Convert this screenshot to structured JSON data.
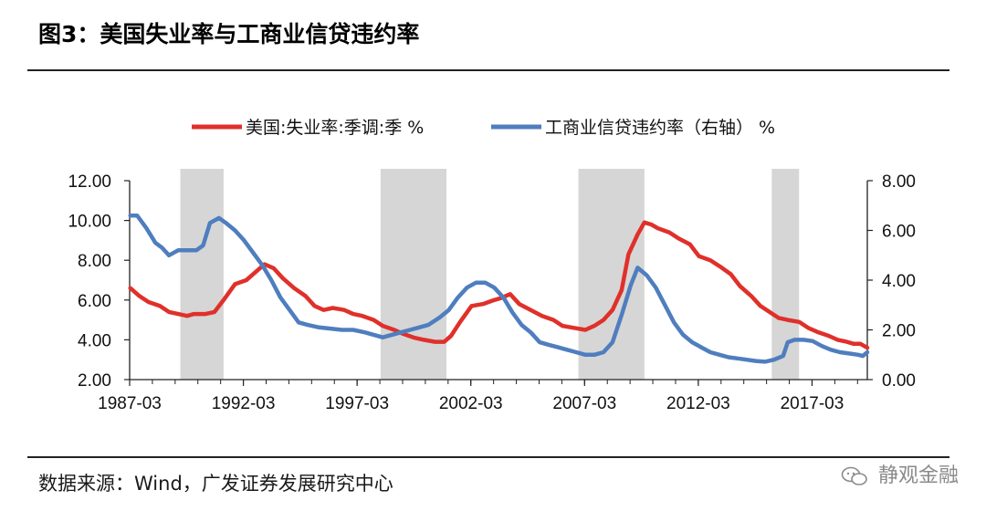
{
  "title": "图3：美国失业率与工商业信贷违约率",
  "source": "数据来源：Wind，广发证券发展研究中心",
  "watermark": "静观金融",
  "chart_data": {
    "type": "line",
    "title": "图3：美国失业率与工商业信贷违约率",
    "legend_position": "top",
    "x_axis": {
      "start": 1987.17,
      "end": 2019.6,
      "tick_labels": [
        "1987-03",
        "1992-03",
        "1997-03",
        "2002-03",
        "2007-03",
        "2012-03",
        "2017-03"
      ],
      "tick_values": [
        1987.17,
        1992.17,
        1997.17,
        2002.17,
        2007.17,
        2012.17,
        2017.17
      ]
    },
    "y_left": {
      "min": 2,
      "max": 12,
      "ticks": [
        "2.00",
        "4.00",
        "6.00",
        "8.00",
        "10.00",
        "12.00"
      ]
    },
    "y_right": {
      "min": 0,
      "max": 8,
      "ticks": [
        "0.00",
        "2.00",
        "4.00",
        "6.00",
        "8.00"
      ]
    },
    "recessions": [
      [
        1989.4,
        1991.3
      ],
      [
        1998.2,
        2001.1
      ],
      [
        2006.9,
        2009.8
      ],
      [
        2015.4,
        2016.6
      ]
    ],
    "series": [
      {
        "name": "美国:失业率:季调:季 %",
        "axis": "left",
        "color": "#e0302a",
        "points": [
          [
            1987.2,
            6.6
          ],
          [
            1987.6,
            6.2
          ],
          [
            1988.0,
            5.9
          ],
          [
            1988.5,
            5.7
          ],
          [
            1988.9,
            5.4
          ],
          [
            1989.3,
            5.3
          ],
          [
            1989.7,
            5.2
          ],
          [
            1990.0,
            5.3
          ],
          [
            1990.5,
            5.3
          ],
          [
            1990.9,
            5.4
          ],
          [
            1991.3,
            6.0
          ],
          [
            1991.8,
            6.8
          ],
          [
            1992.3,
            7.0
          ],
          [
            1992.8,
            7.5
          ],
          [
            1993.1,
            7.8
          ],
          [
            1993.5,
            7.6
          ],
          [
            1993.9,
            7.1
          ],
          [
            1994.4,
            6.6
          ],
          [
            1994.9,
            6.2
          ],
          [
            1995.3,
            5.7
          ],
          [
            1995.7,
            5.5
          ],
          [
            1996.1,
            5.6
          ],
          [
            1996.6,
            5.5
          ],
          [
            1997.0,
            5.3
          ],
          [
            1997.4,
            5.2
          ],
          [
            1997.9,
            5.0
          ],
          [
            1998.3,
            4.7
          ],
          [
            1998.8,
            4.5
          ],
          [
            1999.2,
            4.3
          ],
          [
            1999.7,
            4.1
          ],
          [
            2000.1,
            4.0
          ],
          [
            2000.6,
            3.9
          ],
          [
            2001.0,
            3.9
          ],
          [
            2001.3,
            4.2
          ],
          [
            2001.7,
            4.9
          ],
          [
            2002.2,
            5.7
          ],
          [
            2002.7,
            5.8
          ],
          [
            2003.2,
            6.0
          ],
          [
            2003.5,
            6.1
          ],
          [
            2003.9,
            6.3
          ],
          [
            2004.3,
            5.8
          ],
          [
            2004.8,
            5.5
          ],
          [
            2005.3,
            5.2
          ],
          [
            2005.8,
            5.0
          ],
          [
            2006.2,
            4.7
          ],
          [
            2006.7,
            4.6
          ],
          [
            2007.2,
            4.5
          ],
          [
            2007.6,
            4.7
          ],
          [
            2008.0,
            5.0
          ],
          [
            2008.4,
            5.5
          ],
          [
            2008.8,
            6.5
          ],
          [
            2009.1,
            8.3
          ],
          [
            2009.5,
            9.3
          ],
          [
            2009.8,
            9.9
          ],
          [
            2010.1,
            9.8
          ],
          [
            2010.4,
            9.6
          ],
          [
            2010.9,
            9.4
          ],
          [
            2011.3,
            9.1
          ],
          [
            2011.8,
            8.8
          ],
          [
            2012.2,
            8.2
          ],
          [
            2012.7,
            8.0
          ],
          [
            2013.1,
            7.7
          ],
          [
            2013.6,
            7.3
          ],
          [
            2014.0,
            6.7
          ],
          [
            2014.5,
            6.2
          ],
          [
            2014.9,
            5.7
          ],
          [
            2015.3,
            5.4
          ],
          [
            2015.7,
            5.1
          ],
          [
            2016.1,
            5.0
          ],
          [
            2016.6,
            4.9
          ],
          [
            2017.0,
            4.6
          ],
          [
            2017.4,
            4.4
          ],
          [
            2017.9,
            4.2
          ],
          [
            2018.3,
            4.0
          ],
          [
            2018.7,
            3.9
          ],
          [
            2019.0,
            3.8
          ],
          [
            2019.3,
            3.8
          ],
          [
            2019.6,
            3.6
          ]
        ]
      },
      {
        "name": "工商业信贷违约率（右轴） %",
        "axis": "right",
        "color": "#4f7ebf",
        "points": [
          [
            1987.2,
            6.6
          ],
          [
            1987.5,
            6.6
          ],
          [
            1987.9,
            6.1
          ],
          [
            1988.3,
            5.5
          ],
          [
            1988.6,
            5.3
          ],
          [
            1988.9,
            5.0
          ],
          [
            1989.3,
            5.2
          ],
          [
            1989.7,
            5.2
          ],
          [
            1990.1,
            5.2
          ],
          [
            1990.4,
            5.4
          ],
          [
            1990.7,
            6.3
          ],
          [
            1991.1,
            6.5
          ],
          [
            1991.4,
            6.3
          ],
          [
            1991.8,
            6.0
          ],
          [
            1992.2,
            5.6
          ],
          [
            1992.6,
            5.1
          ],
          [
            1993.0,
            4.6
          ],
          [
            1993.4,
            4.0
          ],
          [
            1993.8,
            3.3
          ],
          [
            1994.2,
            2.8
          ],
          [
            1994.6,
            2.3
          ],
          [
            1995.0,
            2.2
          ],
          [
            1995.5,
            2.1
          ],
          [
            1996.0,
            2.05
          ],
          [
            1996.5,
            2.0
          ],
          [
            1997.0,
            2.0
          ],
          [
            1997.5,
            1.9
          ],
          [
            1997.9,
            1.8
          ],
          [
            1998.3,
            1.7
          ],
          [
            1998.7,
            1.8
          ],
          [
            1999.1,
            1.9
          ],
          [
            1999.5,
            2.0
          ],
          [
            1999.9,
            2.1
          ],
          [
            2000.3,
            2.2
          ],
          [
            2000.8,
            2.5
          ],
          [
            2001.2,
            2.8
          ],
          [
            2001.6,
            3.3
          ],
          [
            2002.0,
            3.7
          ],
          [
            2002.4,
            3.9
          ],
          [
            2002.8,
            3.9
          ],
          [
            2003.2,
            3.7
          ],
          [
            2003.6,
            3.3
          ],
          [
            2004.0,
            2.7
          ],
          [
            2004.4,
            2.2
          ],
          [
            2004.8,
            1.9
          ],
          [
            2005.2,
            1.5
          ],
          [
            2005.6,
            1.4
          ],
          [
            2006.0,
            1.3
          ],
          [
            2006.4,
            1.2
          ],
          [
            2006.8,
            1.1
          ],
          [
            2007.2,
            1.0
          ],
          [
            2007.6,
            1.0
          ],
          [
            2008.0,
            1.1
          ],
          [
            2008.4,
            1.5
          ],
          [
            2008.8,
            2.6
          ],
          [
            2009.2,
            3.8
          ],
          [
            2009.5,
            4.5
          ],
          [
            2009.9,
            4.2
          ],
          [
            2010.3,
            3.7
          ],
          [
            2010.7,
            3.0
          ],
          [
            2011.1,
            2.3
          ],
          [
            2011.5,
            1.8
          ],
          [
            2011.9,
            1.5
          ],
          [
            2012.3,
            1.3
          ],
          [
            2012.7,
            1.1
          ],
          [
            2013.1,
            1.0
          ],
          [
            2013.5,
            0.9
          ],
          [
            2013.9,
            0.85
          ],
          [
            2014.3,
            0.8
          ],
          [
            2014.7,
            0.75
          ],
          [
            2015.1,
            0.72
          ],
          [
            2015.5,
            0.8
          ],
          [
            2015.9,
            0.95
          ],
          [
            2016.1,
            1.5
          ],
          [
            2016.4,
            1.6
          ],
          [
            2016.8,
            1.6
          ],
          [
            2017.2,
            1.55
          ],
          [
            2017.6,
            1.35
          ],
          [
            2018.0,
            1.2
          ],
          [
            2018.4,
            1.1
          ],
          [
            2018.8,
            1.05
          ],
          [
            2019.2,
            1.0
          ],
          [
            2019.4,
            0.95
          ],
          [
            2019.6,
            1.1
          ]
        ]
      }
    ]
  }
}
